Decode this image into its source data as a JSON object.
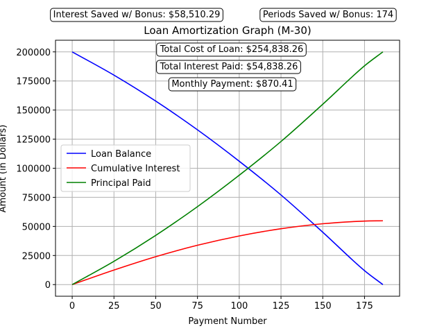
{
  "chart_data": {
    "type": "line",
    "title": "Loan Amortization Graph (M-30)",
    "xlabel": "Payment Number",
    "ylabel": "Amount (in Dollars)",
    "xlim": [
      -10,
      196
    ],
    "ylim": [
      -10000,
      210000
    ],
    "xticks": [
      0,
      25,
      50,
      75,
      100,
      125,
      150,
      175
    ],
    "yticks": [
      0,
      25000,
      50000,
      75000,
      100000,
      125000,
      150000,
      175000,
      200000
    ],
    "grid": true,
    "legend_placement": "center-left",
    "x": [
      0,
      25,
      50,
      75,
      100,
      125,
      150,
      175,
      186
    ],
    "series": [
      {
        "name": "Loan Balance",
        "color": "#0000ff",
        "values": [
          200000,
          180000,
          157700,
          133000,
          106000,
          77000,
          45000,
          12000,
          0
        ]
      },
      {
        "name": "Cumulative Interest",
        "color": "#ff0000",
        "values": [
          0,
          12500,
          24000,
          33800,
          41800,
          48000,
          52300,
          54600,
          54838.26
        ]
      },
      {
        "name": "Principal Paid",
        "color": "#008000",
        "values": [
          0,
          20000,
          42300,
          67000,
          94000,
          123000,
          155000,
          188000,
          200000
        ]
      }
    ],
    "annotations": [
      "Interest Saved w/ Bonus: $58,510.29",
      "Periods Saved w/ Bonus: 174",
      "Total Cost of Loan: $254,838.26",
      "Total Interest Paid: $54,838.26",
      "Monthly Payment: $870.41"
    ]
  }
}
